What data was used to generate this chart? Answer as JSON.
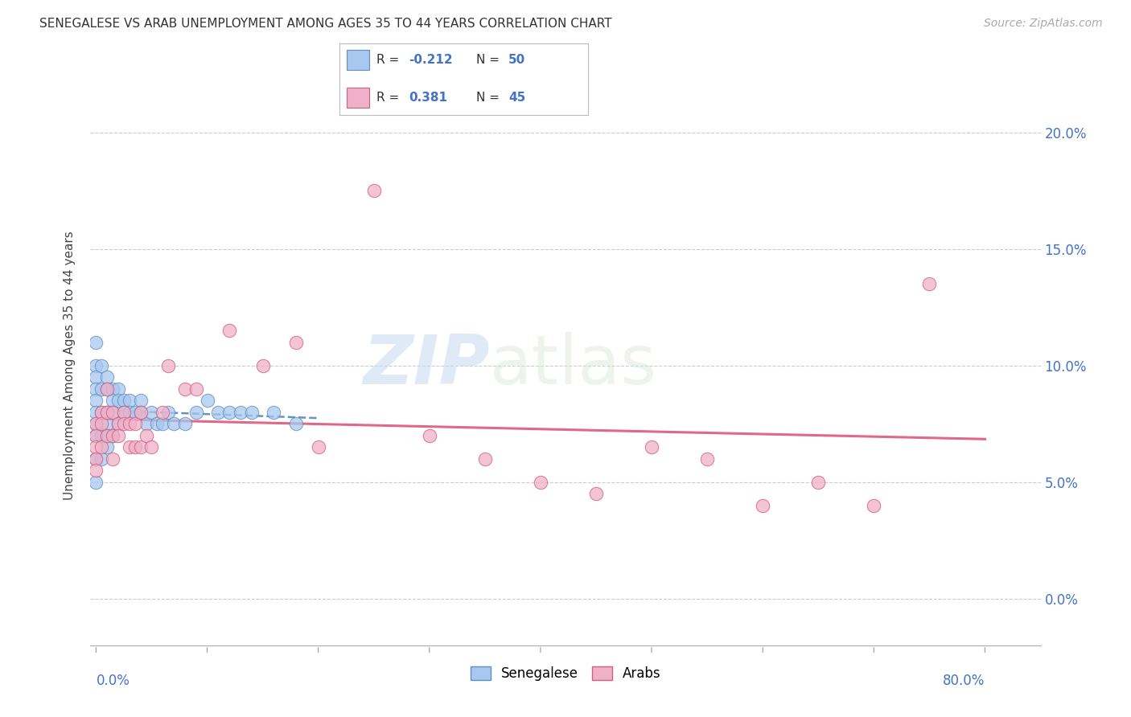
{
  "title": "SENEGALESE VS ARAB UNEMPLOYMENT AMONG AGES 35 TO 44 YEARS CORRELATION CHART",
  "source": "Source: ZipAtlas.com",
  "ylabel": "Unemployment Among Ages 35 to 44 years",
  "ylim": [
    -0.02,
    0.22
  ],
  "xlim": [
    -0.005,
    0.85
  ],
  "yticks": [
    0.0,
    0.05,
    0.1,
    0.15,
    0.2
  ],
  "ytick_labels": [
    "",
    "",
    "",
    "",
    ""
  ],
  "ytick_labels_right": [
    "0.0%",
    "5.0%",
    "10.0%",
    "15.0%",
    "20.0%"
  ],
  "xtick_left_label": "0.0%",
  "xtick_right_label": "80.0%",
  "watermark_zip": "ZIP",
  "watermark_atlas": "atlas",
  "senegalese_color": "#a8c8f0",
  "senegalese_edge": "#6090c0",
  "arab_color": "#f0b0c8",
  "arab_edge": "#d06080",
  "trendline_sen_color": "#5080b0",
  "trendline_arab_color": "#e06080",
  "grid_color": "#cccccc",
  "background_color": "#ffffff",
  "sen_R": "-0.212",
  "sen_N": "50",
  "arab_R": "0.381",
  "arab_N": "45",
  "senegalese_x": [
    0.0,
    0.0,
    0.0,
    0.0,
    0.0,
    0.0,
    0.0,
    0.0,
    0.0,
    0.0,
    0.005,
    0.005,
    0.005,
    0.005,
    0.005,
    0.01,
    0.01,
    0.01,
    0.01,
    0.01,
    0.01,
    0.015,
    0.015,
    0.015,
    0.015,
    0.02,
    0.02,
    0.02,
    0.025,
    0.025,
    0.03,
    0.03,
    0.035,
    0.04,
    0.04,
    0.045,
    0.05,
    0.055,
    0.06,
    0.065,
    0.07,
    0.08,
    0.09,
    0.1,
    0.11,
    0.12,
    0.13,
    0.14,
    0.16,
    0.18
  ],
  "senegalese_y": [
    0.11,
    0.1,
    0.095,
    0.09,
    0.085,
    0.08,
    0.075,
    0.07,
    0.06,
    0.05,
    0.1,
    0.09,
    0.08,
    0.07,
    0.06,
    0.095,
    0.09,
    0.08,
    0.075,
    0.07,
    0.065,
    0.09,
    0.085,
    0.08,
    0.07,
    0.09,
    0.085,
    0.075,
    0.085,
    0.08,
    0.085,
    0.08,
    0.08,
    0.085,
    0.08,
    0.075,
    0.08,
    0.075,
    0.075,
    0.08,
    0.075,
    0.075,
    0.08,
    0.085,
    0.08,
    0.08,
    0.08,
    0.08,
    0.08,
    0.075
  ],
  "arab_x": [
    0.0,
    0.0,
    0.0,
    0.0,
    0.0,
    0.005,
    0.005,
    0.005,
    0.01,
    0.01,
    0.01,
    0.015,
    0.015,
    0.015,
    0.02,
    0.02,
    0.025,
    0.025,
    0.03,
    0.03,
    0.035,
    0.035,
    0.04,
    0.04,
    0.045,
    0.05,
    0.06,
    0.065,
    0.08,
    0.09,
    0.12,
    0.15,
    0.18,
    0.2,
    0.25,
    0.3,
    0.35,
    0.4,
    0.45,
    0.5,
    0.55,
    0.6,
    0.65,
    0.7,
    0.75
  ],
  "arab_y": [
    0.075,
    0.07,
    0.065,
    0.06,
    0.055,
    0.08,
    0.075,
    0.065,
    0.09,
    0.08,
    0.07,
    0.08,
    0.07,
    0.06,
    0.075,
    0.07,
    0.08,
    0.075,
    0.075,
    0.065,
    0.075,
    0.065,
    0.08,
    0.065,
    0.07,
    0.065,
    0.08,
    0.1,
    0.09,
    0.09,
    0.115,
    0.1,
    0.11,
    0.065,
    0.175,
    0.07,
    0.06,
    0.05,
    0.045,
    0.065,
    0.06,
    0.04,
    0.05,
    0.04,
    0.135
  ]
}
